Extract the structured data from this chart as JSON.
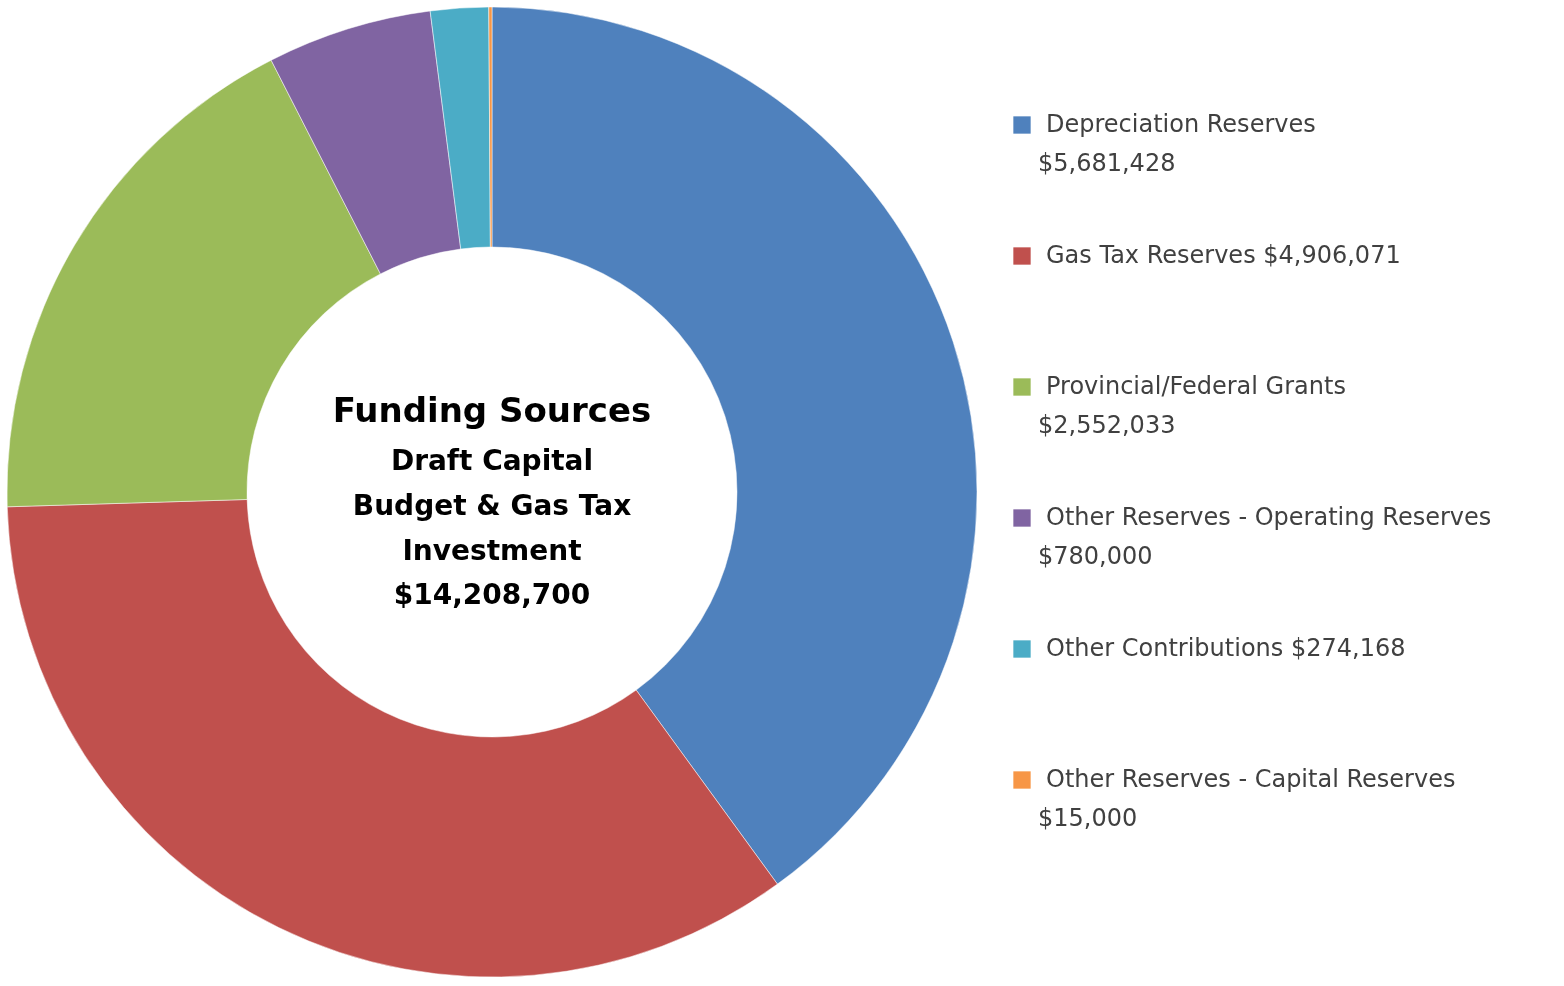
{
  "chart_data": {
    "type": "donut",
    "title": "Funding Sources",
    "subtitle": "Draft Capital Budget & Gas Tax Investment",
    "annotations": [
      "$14,208,700"
    ],
    "categories": [
      "Depreciation Reserves",
      "Gas Tax Reserves",
      "Provincial/Federal Grants",
      "Other Reserves - Operating Reserves",
      "Other Contributions",
      "Other Reserves - Capital Reserves"
    ],
    "values": [
      5681428,
      4906071,
      2552033,
      780000,
      274168,
      15000
    ],
    "value_labels": [
      "$5,681,428",
      "$4,906,071",
      "$2,552,033",
      "$780,000",
      "$274,168",
      "$15,000"
    ],
    "colors": [
      "#4f81bd",
      "#c0504d",
      "#9bbb59",
      "#8064a2",
      "#4bacc6",
      "#f79646"
    ],
    "legend": "right"
  }
}
